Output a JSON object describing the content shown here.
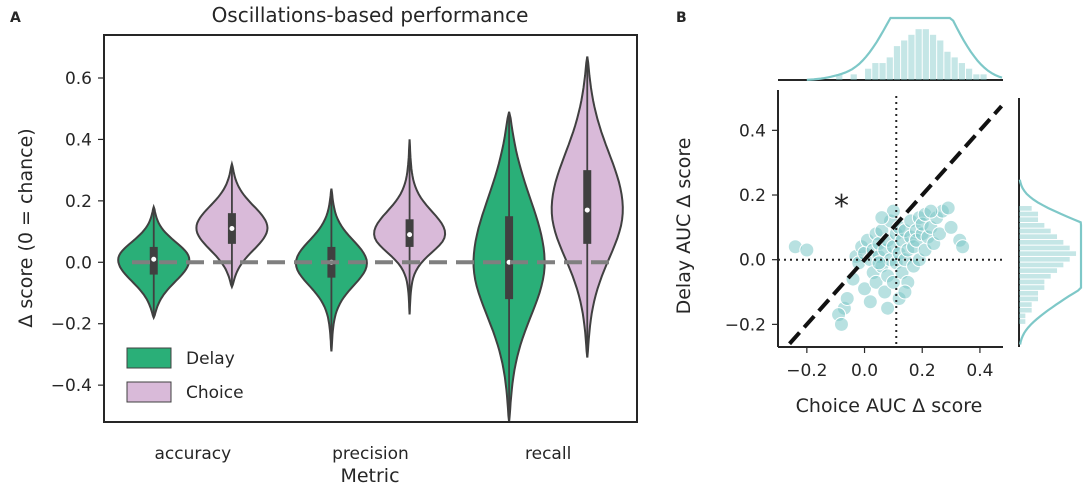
{
  "chart_data": [
    {
      "panel_label": "A",
      "type": "violin",
      "title": "Oscillations-based performance",
      "xlabel": "Metric",
      "ylabel": "Δ score (0 = chance)",
      "categories": [
        "accuracy",
        "precision",
        "recall"
      ],
      "ylim": [
        -0.52,
        0.74
      ],
      "yticks": [
        "−0.4",
        "−0.2",
        "0.0",
        "0.2",
        "0.4",
        "0.6"
      ],
      "ytick_values": [
        -0.4,
        -0.2,
        0.0,
        0.2,
        0.4,
        0.6
      ],
      "reference_line": 0.0,
      "legend": {
        "placement": "bottom-left",
        "entries": [
          "Delay",
          "Choice"
        ]
      },
      "series": [
        {
          "name": "Delay",
          "color": "#2aaf78",
          "stats": [
            {
              "min": -0.18,
              "q1": -0.04,
              "median": 0.01,
              "q3": 0.05,
              "max": 0.18
            },
            {
              "min": -0.29,
              "q1": -0.05,
              "median": 0.0,
              "q3": 0.05,
              "max": 0.24
            },
            {
              "min": -0.52,
              "q1": -0.12,
              "median": 0.0,
              "q3": 0.15,
              "max": 0.49
            }
          ]
        },
        {
          "name": "Choice",
          "color": "#d9bad9",
          "stats": [
            {
              "min": -0.08,
              "q1": 0.06,
              "median": 0.11,
              "q3": 0.16,
              "max": 0.32
            },
            {
              "min": -0.17,
              "q1": 0.05,
              "median": 0.09,
              "q3": 0.14,
              "max": 0.4
            },
            {
              "min": -0.31,
              "q1": 0.06,
              "median": 0.17,
              "q3": 0.3,
              "max": 0.67
            }
          ]
        }
      ]
    },
    {
      "panel_label": "B",
      "type": "scatter",
      "xlabel": "Choice AUC Δ score",
      "ylabel": "Delay AUC Δ score",
      "xlim": [
        -0.3,
        0.48
      ],
      "ylim": [
        -0.27,
        0.5
      ],
      "xticks": [
        "−0.2",
        "0.0",
        "0.2",
        "0.4"
      ],
      "xtick_values": [
        -0.2,
        0.0,
        0.2,
        0.4
      ],
      "yticks": [
        "−0.2",
        "0.0",
        "0.2",
        "0.4"
      ],
      "ytick_values": [
        -0.2,
        0.0,
        0.2,
        0.4
      ],
      "color": "#7ec8c8",
      "vline_x": 0.11,
      "hline_y": 0.0,
      "diagonal": "y = x",
      "annotation": "*",
      "annotation_pos": [
        -0.08,
        0.19
      ],
      "points": [
        [
          -0.24,
          0.04
        ],
        [
          -0.2,
          0.03
        ],
        [
          -0.07,
          -0.15
        ],
        [
          -0.09,
          -0.17
        ],
        [
          -0.08,
          -0.2
        ],
        [
          -0.06,
          -0.12
        ],
        [
          -0.04,
          -0.06
        ],
        [
          -0.03,
          0.01
        ],
        [
          -0.02,
          -0.01
        ],
        [
          -0.01,
          0.04
        ],
        [
          0.0,
          -0.09
        ],
        [
          0.0,
          0.02
        ],
        [
          0.01,
          0.06
        ],
        [
          0.02,
          -0.13
        ],
        [
          0.02,
          0.0
        ],
        [
          0.03,
          -0.04
        ],
        [
          0.03,
          0.03
        ],
        [
          0.04,
          0.08
        ],
        [
          0.04,
          -0.07
        ],
        [
          0.05,
          0.01
        ],
        [
          0.05,
          0.05
        ],
        [
          0.06,
          -0.02
        ],
        [
          0.06,
          0.09
        ],
        [
          0.07,
          -0.1
        ],
        [
          0.07,
          0.03
        ],
        [
          0.08,
          0.06
        ],
        [
          0.08,
          -0.05
        ],
        [
          0.09,
          0.0
        ],
        [
          0.09,
          0.12
        ],
        [
          0.1,
          -0.07
        ],
        [
          0.1,
          0.04
        ],
        [
          0.11,
          0.08
        ],
        [
          0.11,
          -0.01
        ],
        [
          0.12,
          0.02
        ],
        [
          0.12,
          0.1
        ],
        [
          0.13,
          -0.04
        ],
        [
          0.13,
          0.06
        ],
        [
          0.14,
          0.0
        ],
        [
          0.14,
          0.09
        ],
        [
          0.15,
          0.03
        ],
        [
          0.15,
          -0.07
        ],
        [
          0.16,
          0.07
        ],
        [
          0.16,
          0.12
        ],
        [
          0.17,
          -0.02
        ],
        [
          0.17,
          0.04
        ],
        [
          0.18,
          0.09
        ],
        [
          0.18,
          0.06
        ],
        [
          0.19,
          0.13
        ],
        [
          0.19,
          0.0
        ],
        [
          0.2,
          0.08
        ],
        [
          0.2,
          0.11
        ],
        [
          0.21,
          0.03
        ],
        [
          0.21,
          0.14
        ],
        [
          0.22,
          0.07
        ],
        [
          0.23,
          0.1
        ],
        [
          0.24,
          0.05
        ],
        [
          0.25,
          0.13
        ],
        [
          0.26,
          0.08
        ],
        [
          0.27,
          0.15
        ],
        [
          0.29,
          0.16
        ],
        [
          0.3,
          0.1
        ],
        [
          0.33,
          0.06
        ],
        [
          0.34,
          0.04
        ],
        [
          0.12,
          -0.12
        ],
        [
          0.08,
          -0.15
        ],
        [
          0.14,
          -0.1
        ],
        [
          0.05,
          -0.01
        ],
        [
          0.1,
          0.15
        ],
        [
          0.06,
          0.13
        ],
        [
          0.23,
          0.15
        ]
      ],
      "marginal_x": {
        "bin_start": -0.1,
        "bin_width": 0.025,
        "counts": [
          1,
          0,
          1,
          0,
          2,
          3,
          3,
          4,
          6,
          7,
          8,
          9,
          9,
          8,
          7,
          5,
          4,
          3,
          2,
          1,
          1
        ]
      },
      "marginal_y": {
        "bin_start": -0.2,
        "bin_width": 0.0175,
        "counts": [
          1,
          1,
          2,
          2,
          3,
          3,
          4,
          4,
          5,
          6,
          7,
          8,
          9,
          8,
          7,
          6,
          5,
          4,
          3,
          3,
          2
        ]
      }
    }
  ]
}
